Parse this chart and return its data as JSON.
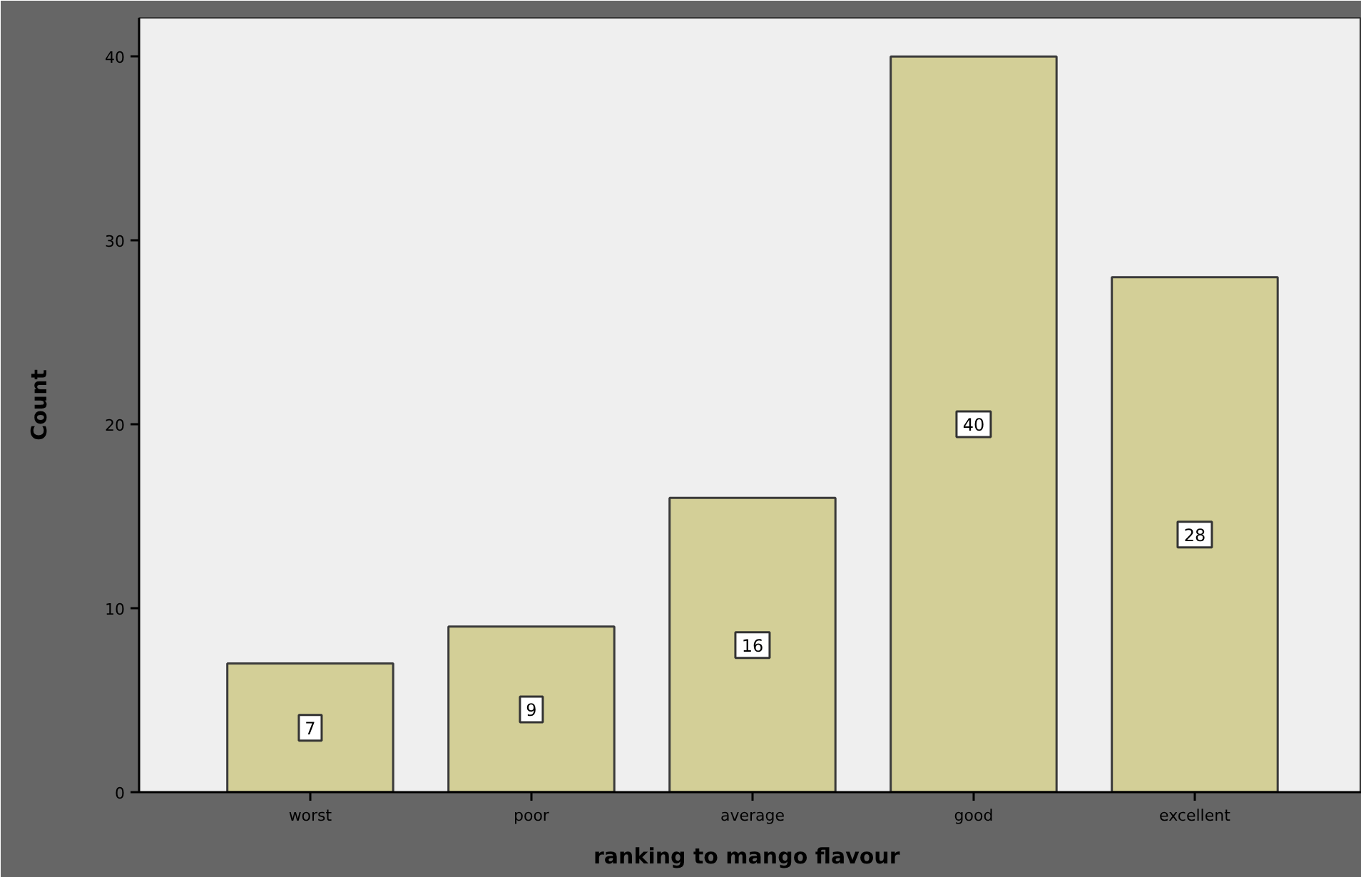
{
  "chart_data": {
    "type": "bar",
    "xlabel": "ranking to mango  flavour",
    "ylabel": "Count",
    "categories": [
      "worst",
      "poor",
      "average",
      "good",
      "excellent"
    ],
    "values": [
      7,
      9,
      16,
      40,
      28
    ],
    "color": "#d3cf97",
    "ylim": [
      0,
      42.1
    ],
    "yticks": [
      0,
      10,
      20,
      30,
      40
    ],
    "data_labels": true
  }
}
